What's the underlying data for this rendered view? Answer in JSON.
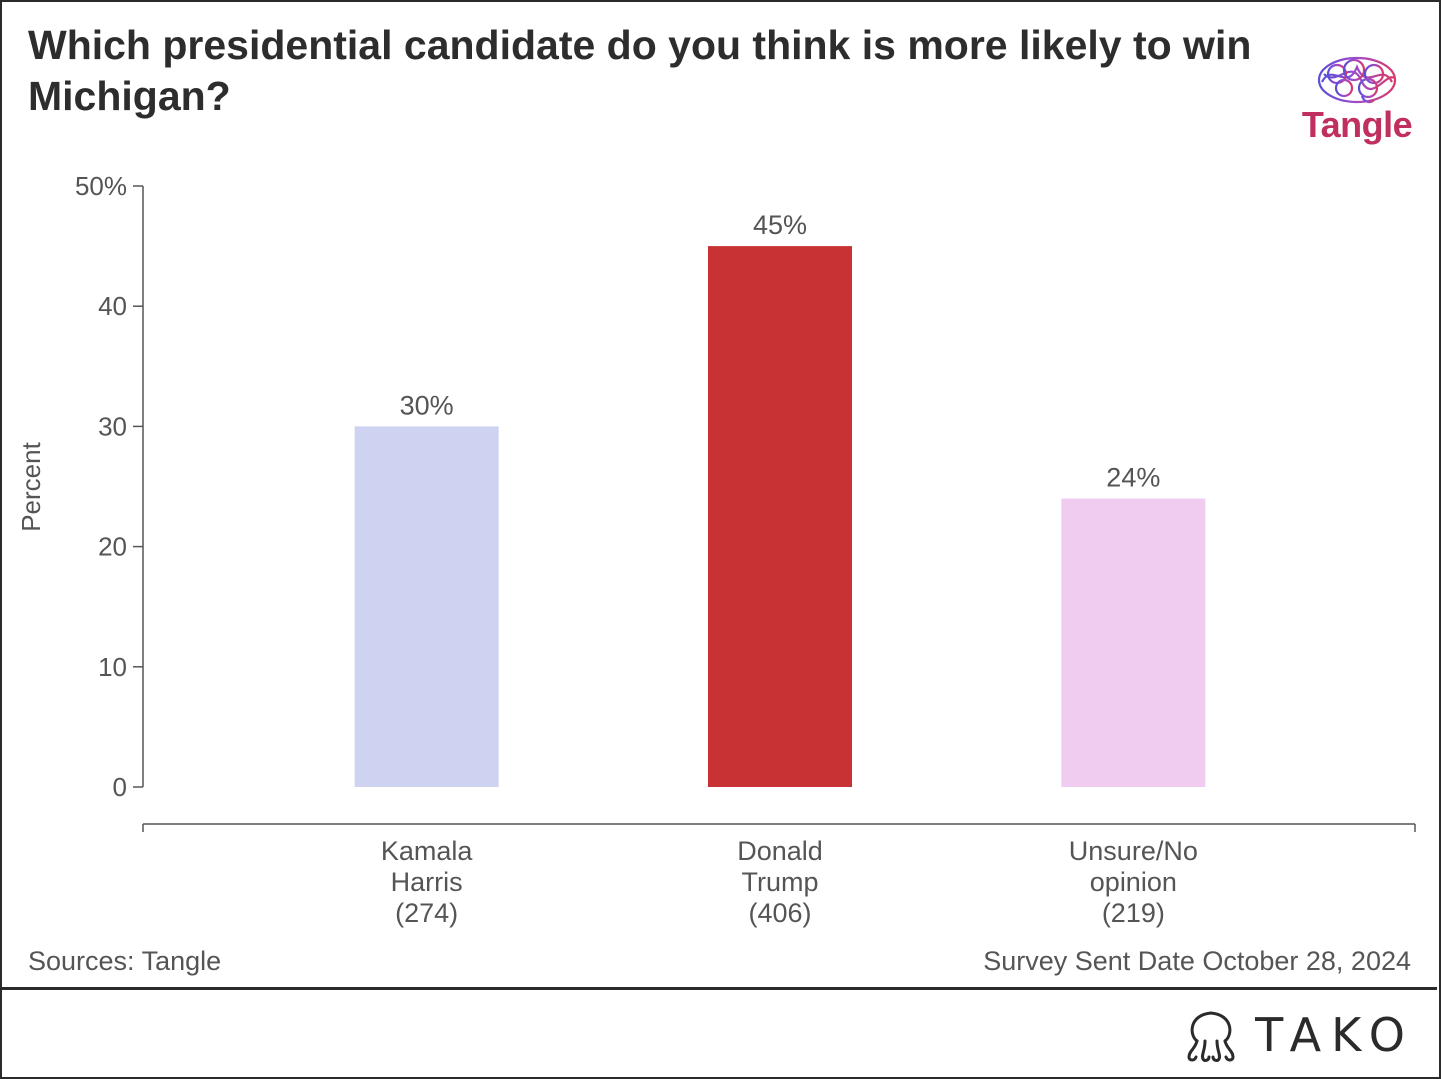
{
  "header": {
    "title": "Which presidential candidate do you think is more likely to win Michigan?",
    "logo_text": "Tangle",
    "logo_icon": "brain-icon"
  },
  "chart_data": {
    "type": "bar",
    "categories": [
      [
        "Kamala",
        "Harris",
        "(274)"
      ],
      [
        "Donald",
        "Trump",
        "(406)"
      ],
      [
        "Unsure/No",
        "opinion",
        "(219)"
      ]
    ],
    "values": [
      30,
      45,
      24
    ],
    "value_labels": [
      "30%",
      "45%",
      "24%"
    ],
    "colors": [
      "#cdd3f0",
      "#c83235",
      "#f0cdf0"
    ],
    "ylabel": "Percent",
    "ylim": [
      0,
      50
    ],
    "yticks": [
      0,
      10,
      20,
      30,
      40,
      50
    ],
    "ytick_labels": [
      "0",
      "10",
      "20",
      "30",
      "40",
      "50%"
    ],
    "grid": false,
    "legend": "none"
  },
  "footer": {
    "source": "Sources: Tangle",
    "date": "Survey Sent Date October 28, 2024",
    "brand": "TAKO",
    "brand_icon": "octopus-icon"
  }
}
